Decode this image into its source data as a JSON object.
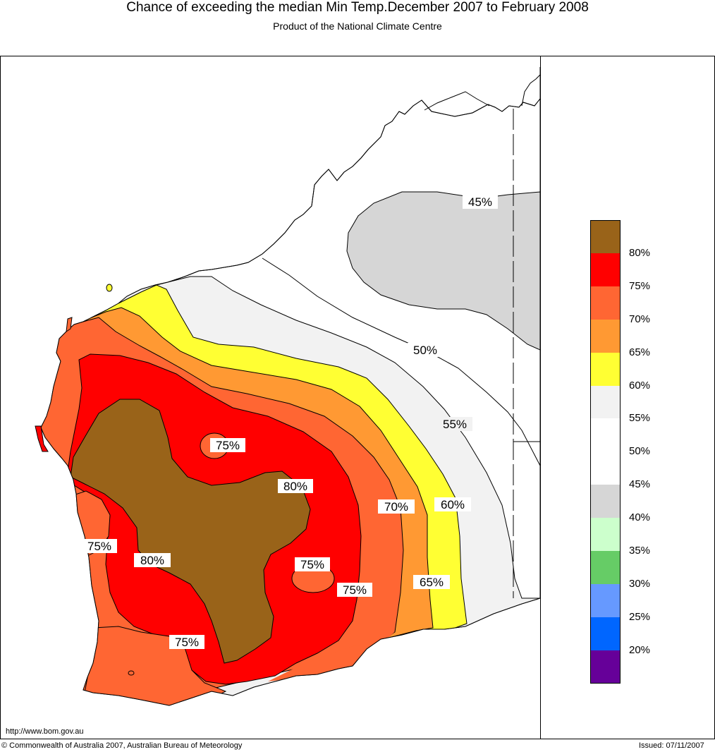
{
  "header": {
    "title": "Chance of exceeding the median Min Temp.December 2007 to February 2008",
    "subtitle": "Product of the National Climate Centre"
  },
  "map": {
    "contour_labels": [
      "45%",
      "50%",
      "55%",
      "60%",
      "65%",
      "70%",
      "75%",
      "75%",
      "75%",
      "75%",
      "75%",
      "80%",
      "80%"
    ],
    "fill_colors": {
      "80": "#996319",
      "75": "#ff0000",
      "70": "#ff6633",
      "65": "#ff9933",
      "60": "#ffff33",
      "55": "#f2f2f2",
      "50": "#ffffff",
      "45": "#ffffff",
      "40": "#d6d6d6"
    }
  },
  "legend": {
    "items": [
      {
        "color": "#996319",
        "label": "80%"
      },
      {
        "color": "#ff0000",
        "label": "75%"
      },
      {
        "color": "#ff6633",
        "label": "70%"
      },
      {
        "color": "#ff9933",
        "label": "65%"
      },
      {
        "color": "#ffff33",
        "label": "60%"
      },
      {
        "color": "#f2f2f2",
        "label": "55%"
      },
      {
        "color": "#ffffff",
        "label": "50%"
      },
      {
        "color": "#ffffff",
        "label": "45%"
      },
      {
        "color": "#d6d6d6",
        "label": "40%"
      },
      {
        "color": "#ccffcc",
        "label": "35%"
      },
      {
        "color": "#66cc66",
        "label": "30%"
      },
      {
        "color": "#6699ff",
        "label": "25%"
      },
      {
        "color": "#0066ff",
        "label": "20%"
      },
      {
        "color": "#660099",
        "label": ""
      }
    ]
  },
  "footer": {
    "url": "http://www.bom.gov.au",
    "copyright": "© Commonwealth of Australia 2007, Australian Bureau of Meteorology",
    "issued": "Issued: 07/11/2007"
  }
}
